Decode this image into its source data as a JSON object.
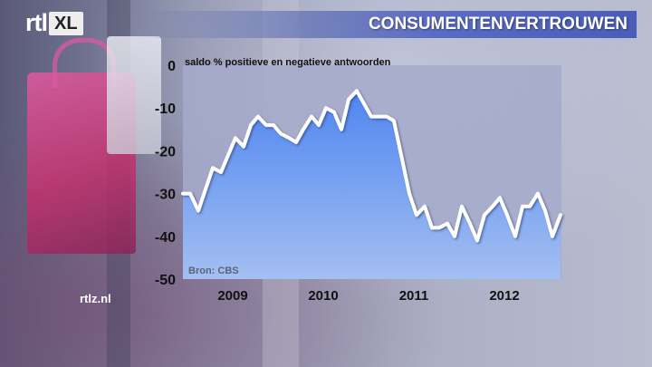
{
  "logo": {
    "brand": "rtl",
    "suffix": "XL"
  },
  "watermark": "rtlz.nl",
  "colors": {
    "title_bar": "#5a6cc2",
    "area_fill": "#6c9af0",
    "line": "#ffffff"
  },
  "chart_data": {
    "type": "area",
    "title": "CONSUMENTENVERTROUWEN",
    "ylabel": "saldo % positieve en negatieve antwoorden",
    "source": "Bron: CBS",
    "ylim": [
      -50,
      0
    ],
    "yticks": [
      0,
      -10,
      -20,
      -30,
      -40,
      -50
    ],
    "xlim": [
      2008.5,
      2012.68
    ],
    "xticks": [
      {
        "label": "2009",
        "value": 2009
      },
      {
        "label": "2010",
        "value": 2010
      },
      {
        "label": "2011",
        "value": 2011
      },
      {
        "label": "2012",
        "value": 2012
      }
    ],
    "series": [
      {
        "x": [
          2008.5,
          2008.58,
          2008.67,
          2008.75,
          2008.83,
          2008.92,
          2009.0,
          2009.08,
          2009.17,
          2009.25,
          2009.33,
          2009.42,
          2009.5,
          2009.58,
          2009.67,
          2009.75,
          2009.83,
          2009.92,
          2010.0,
          2010.08,
          2010.17,
          2010.25,
          2010.33,
          2010.42,
          2010.5,
          2010.58,
          2010.67,
          2010.75,
          2010.83,
          2010.92,
          2011.0,
          2011.08,
          2011.17,
          2011.25,
          2011.33,
          2011.42,
          2011.5,
          2011.58,
          2011.67,
          2011.75,
          2011.83,
          2011.92,
          2012.0,
          2012.08,
          2012.17,
          2012.25,
          2012.33,
          2012.42,
          2012.5,
          2012.58,
          2012.67
        ],
        "y": [
          -30,
          -30,
          -34,
          -29,
          -24,
          -25,
          -21,
          -17,
          -19,
          -14,
          -12,
          -14,
          -14,
          -16,
          -17,
          -18,
          -15,
          -12,
          -14,
          -10,
          -11,
          -15,
          -8,
          -6,
          -9,
          -12,
          -12,
          -12,
          -13,
          -22,
          -30,
          -35,
          -33,
          -38,
          -38,
          -37,
          -40,
          -33,
          -37,
          -41,
          -35,
          -33,
          -31,
          -35,
          -40,
          -33,
          -33,
          -30,
          -34,
          -40,
          -35
        ]
      }
    ]
  }
}
